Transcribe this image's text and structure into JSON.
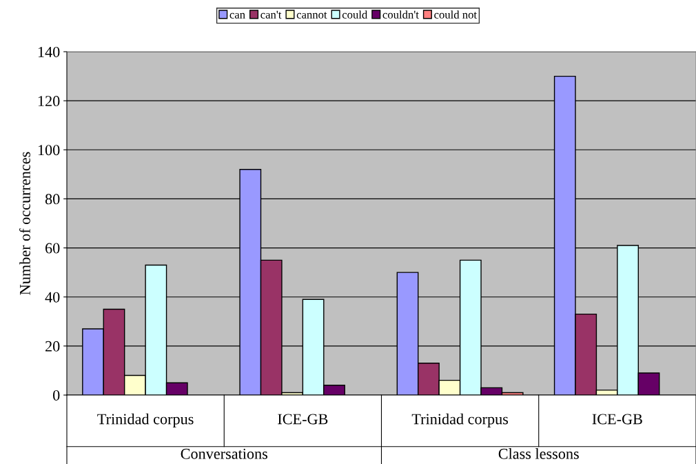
{
  "chart_data": {
    "type": "bar",
    "ylabel": "Number of occurrences",
    "categories": [
      "Trinidad corpus",
      "ICE-GB",
      "Trinidad corpus",
      "ICE-GB"
    ],
    "annotations": [
      "Conversations",
      "Class lessons"
    ],
    "series": [
      {
        "name": "can",
        "color": "#9999ff",
        "values": [
          27,
          92,
          50,
          130
        ]
      },
      {
        "name": "can't",
        "color": "#993366",
        "values": [
          35,
          55,
          13,
          33
        ]
      },
      {
        "name": "cannot",
        "color": "#ffffcc",
        "values": [
          8,
          1,
          6,
          2
        ]
      },
      {
        "name": "could",
        "color": "#ccffff",
        "values": [
          53,
          39,
          55,
          61
        ]
      },
      {
        "name": "couldn't",
        "color": "#660066",
        "values": [
          5,
          4,
          3,
          9
        ]
      },
      {
        "name": "could not",
        "color": "#ff8080",
        "values": [
          null,
          null,
          1,
          null
        ]
      }
    ],
    "ylim": [
      0,
      140
    ],
    "yticks": [
      0,
      20,
      40,
      60,
      80,
      100,
      120,
      140
    ],
    "grid": "y",
    "legend": "top"
  }
}
